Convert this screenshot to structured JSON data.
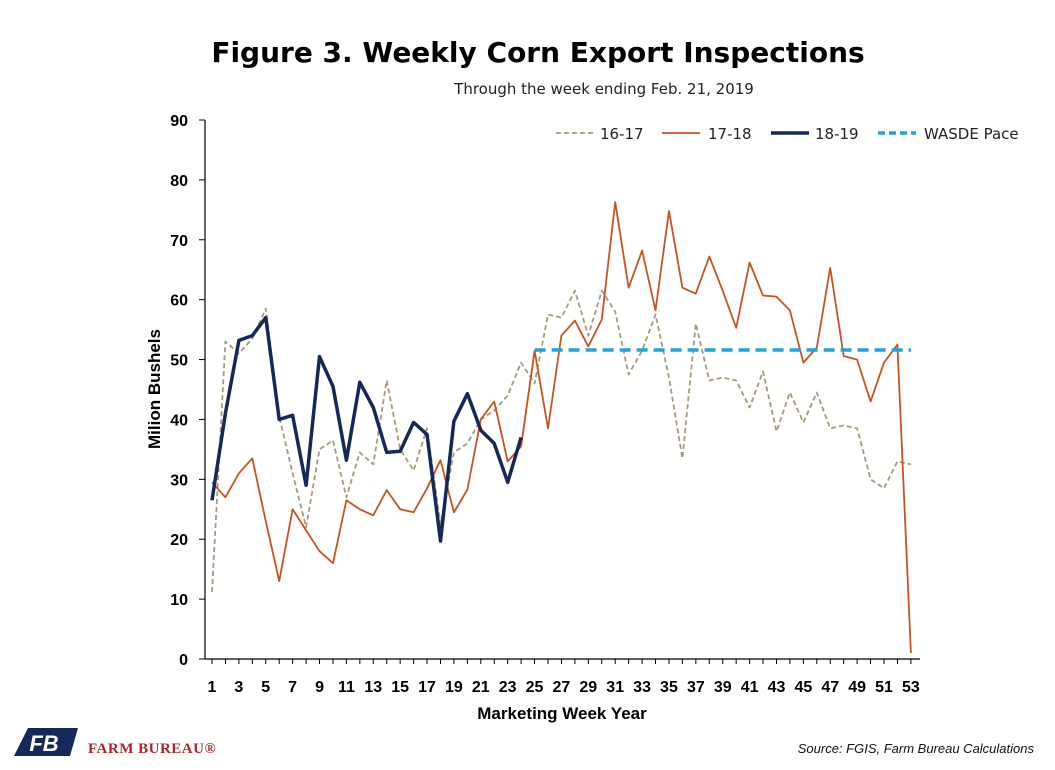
{
  "chart_data": {
    "type": "line",
    "title": "Figure 3. Weekly Corn Export Inspections",
    "subtitle": "Through the week ending Feb. 21, 2019",
    "xlabel": "Marketing Week Year",
    "ylabel": "Milion Bushels",
    "ylim": [
      0,
      90
    ],
    "yticks": [
      0,
      10,
      20,
      30,
      40,
      50,
      60,
      70,
      80,
      90
    ],
    "xlim": [
      1,
      53
    ],
    "xticks": [
      1,
      3,
      5,
      7,
      9,
      11,
      13,
      15,
      17,
      19,
      21,
      23,
      25,
      27,
      29,
      31,
      33,
      35,
      37,
      39,
      41,
      43,
      45,
      47,
      49,
      51,
      53
    ],
    "grid": false,
    "legend_position": "top-right",
    "series": [
      {
        "name": "16-17",
        "color": "#a89a78",
        "style": "dashed",
        "x_start": 1,
        "values": [
          11.2,
          53,
          51,
          53.5,
          58.5,
          40.5,
          31,
          22,
          35,
          36.5,
          27,
          34.5,
          32.5,
          46.5,
          35,
          31.5,
          38.5,
          22.5,
          34.5,
          36,
          40,
          41.5,
          44,
          49.5,
          46,
          57.5,
          57,
          61.5,
          54,
          61.5,
          58,
          47.5,
          51.5,
          57.5,
          47,
          33.5,
          56,
          46.5,
          47,
          46.5,
          42,
          48,
          38,
          44.5,
          39.5,
          44.5,
          38.5,
          39,
          38.5,
          30,
          28.5,
          33,
          32.5
        ]
      },
      {
        "name": "17-18",
        "color": "#c9531f",
        "style": "solid",
        "x_start": 1,
        "values": [
          29.5,
          27,
          31,
          33.5,
          23,
          13,
          25,
          21.5,
          18,
          16,
          26.5,
          25,
          24,
          28.2,
          25,
          24.5,
          28.5,
          33.2,
          24.5,
          28.3,
          40,
          43,
          33,
          35.5,
          51.5,
          38.5,
          54,
          56.5,
          52.2,
          56.7,
          76.3,
          62,
          68.2,
          58.2,
          74.8,
          62,
          61,
          67.2,
          61.5,
          55.3,
          66.2,
          60.7,
          60.5,
          58.2,
          49.5,
          52,
          65.3,
          50.6,
          50,
          43,
          49.5,
          52.5,
          1
        ]
      },
      {
        "name": "18-19",
        "color": "#15285a",
        "style": "solid",
        "x_start": 1,
        "values": [
          26.5,
          41,
          53.2,
          54,
          57,
          40,
          40.7,
          29,
          50.5,
          45.5,
          33.2,
          46.2,
          42,
          34.5,
          34.7,
          39.5,
          37.5,
          19.7,
          39.7,
          44.3,
          38.2,
          36,
          29.5,
          37
        ]
      },
      {
        "name": "WASDE Pace",
        "color": "#1fa3dc",
        "style": "dashed",
        "x": [
          25,
          53
        ],
        "values": [
          51.6,
          51.6
        ]
      }
    ]
  },
  "footer": {
    "source": "Source: FGIS, Farm Bureau Calculations",
    "brand_name": "FARM BUREAU®",
    "logo_letters": "FB"
  }
}
